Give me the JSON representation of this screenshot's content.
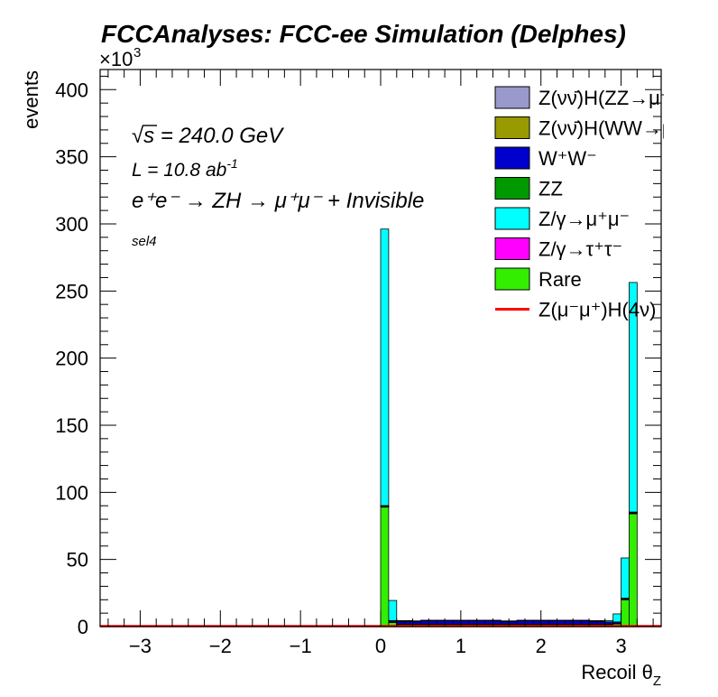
{
  "chart_data": {
    "type": "bar",
    "title": "FCCAnalyses: FCC-ee Simulation (Delphes)",
    "xlabel": "Recoil θ",
    "xlabel_sub": "Z",
    "ylabel": "events",
    "y_exponent_label": "×10",
    "y_exponent_power": "3",
    "xlim": [
      -3.5,
      3.5
    ],
    "ylim": [
      0,
      415
    ],
    "x_ticks": [
      -3,
      -2,
      -1,
      0,
      1,
      2,
      3
    ],
    "x_tick_labels": [
      "−3",
      "−2",
      "−1",
      "0",
      "1",
      "2",
      "3"
    ],
    "y_ticks": [
      0,
      50,
      100,
      150,
      200,
      250,
      300,
      350,
      400
    ],
    "y_tick_labels": [
      "0",
      "50",
      "100",
      "150",
      "200",
      "250",
      "300",
      "350",
      "400"
    ],
    "y_unit_multiplier": 1000,
    "grid": false,
    "legend_position": "top-right",
    "bin_edges": [
      0.0,
      0.1,
      0.2,
      0.3,
      0.4,
      0.5,
      0.6,
      0.7,
      0.8,
      0.9,
      1.0,
      1.1,
      1.2,
      1.3,
      1.4,
      1.5,
      1.6,
      1.7,
      1.8,
      1.9,
      2.0,
      2.1,
      2.2,
      2.3,
      2.4,
      2.5,
      2.6,
      2.7,
      2.8,
      2.9,
      3.0,
      3.1,
      3.2
    ],
    "stack_order": [
      "Rare",
      "ZZ",
      "W+W-",
      "Z(νν)H(WW)",
      "Z(νν)H(ZZ)",
      "Z/γ→τ+τ-",
      "Z/γ→μ+μ-"
    ],
    "series": [
      {
        "name": "Rare",
        "color": "#33ee00",
        "values": [
          89,
          3,
          1.5,
          1.5,
          1.5,
          1.5,
          1.5,
          1.5,
          1.5,
          1.5,
          1.5,
          1.5,
          1.5,
          1.5,
          1.5,
          1.5,
          1.5,
          1.5,
          1.5,
          1.5,
          1.5,
          1.5,
          1.5,
          1.5,
          1.5,
          1.5,
          1.5,
          1.5,
          1.5,
          2,
          20,
          84
        ]
      },
      {
        "name": "ZZ",
        "color": "#009900",
        "values": [
          0.3,
          0.3,
          0.3,
          0.3,
          0.3,
          0.3,
          0.3,
          0.3,
          0.3,
          0.3,
          0.3,
          0.3,
          0.3,
          0.3,
          0.3,
          0.3,
          0.3,
          0.3,
          0.3,
          0.3,
          0.3,
          0.3,
          0.3,
          0.3,
          0.3,
          0.3,
          0.3,
          0.3,
          0.3,
          0.3,
          0.5,
          0.5
        ]
      },
      {
        "name": "W+W-",
        "color": "#0000cc",
        "values": [
          0.5,
          1,
          2,
          2,
          2,
          2.5,
          2.5,
          2.5,
          2.5,
          2.5,
          2.5,
          2.5,
          2.5,
          2.5,
          2.5,
          2,
          2,
          2.5,
          2.5,
          2.5,
          2.5,
          2.5,
          2.5,
          2.5,
          2.5,
          2.5,
          2,
          2,
          1.5,
          1,
          0.5,
          0.5
        ]
      },
      {
        "name": "Z(νν)H(WW)",
        "color": "#999900",
        "values": [
          0.1,
          0.1,
          0.1,
          0.1,
          0.1,
          0.1,
          0.1,
          0.1,
          0.1,
          0.1,
          0.1,
          0.1,
          0.1,
          0.1,
          0.1,
          0.1,
          0.1,
          0.1,
          0.1,
          0.1,
          0.1,
          0.1,
          0.1,
          0.1,
          0.1,
          0.1,
          0.1,
          0.1,
          0.1,
          0.1,
          0.1,
          0.1
        ]
      },
      {
        "name": "Z(νν)H(ZZ)",
        "color": "#9999cc",
        "values": [
          0.05,
          0.05,
          0.05,
          0.05,
          0.05,
          0.05,
          0.05,
          0.05,
          0.05,
          0.05,
          0.05,
          0.05,
          0.05,
          0.05,
          0.05,
          0.05,
          0.05,
          0.05,
          0.05,
          0.05,
          0.05,
          0.05,
          0.05,
          0.05,
          0.05,
          0.05,
          0.05,
          0.05,
          0.05,
          0.05,
          0.05,
          0.05
        ]
      },
      {
        "name": "Z/γ→τ+τ-",
        "color": "#ff00ff",
        "values": [
          0.2,
          0,
          0,
          0,
          0,
          0,
          0,
          0,
          0,
          0,
          0,
          0,
          0,
          0,
          0,
          0,
          0,
          0,
          0,
          0,
          0,
          0,
          0,
          0,
          0,
          0,
          0,
          0,
          0,
          0,
          0,
          0.2
        ]
      },
      {
        "name": "Z/γ→μ+μ-",
        "color": "#00ffff",
        "values": [
          206,
          15,
          0.5,
          0.5,
          0.3,
          0.3,
          0.3,
          0.3,
          0.3,
          0.3,
          0.3,
          0.3,
          0.3,
          0.3,
          0.3,
          0.3,
          0.3,
          0.3,
          0.3,
          0.3,
          0.3,
          0.3,
          0.3,
          0.3,
          0.3,
          0.3,
          0.5,
          0.5,
          1,
          6,
          30,
          171
        ]
      }
    ],
    "signal_line": {
      "name": "Z(μ-μ+)H(4ν)",
      "color": "#ff0000",
      "value": 0.3
    }
  },
  "annotations": {
    "sqrt_s_symbol": "√",
    "sqrt_s_var": "s",
    "sqrt_s_text": " = 240.0 GeV",
    "lumi_text": "L = 10.8 ab",
    "lumi_exp": "-1",
    "process_text": "e⁺e⁻ → ZH → μ⁺μ⁻ + Invisible",
    "selection_text": "sel4"
  },
  "legend": [
    {
      "label": "Z(νν̄)H(ZZ→μ⁺μ⁻ν⁺",
      "color": "#9999cc",
      "kind": "box"
    },
    {
      "label": "Z(νν̄)H(WW→μ⁺νμ",
      "color": "#999900",
      "kind": "box"
    },
    {
      "label": "W⁺W⁻",
      "color": "#0000cc",
      "kind": "box"
    },
    {
      "label": "ZZ",
      "color": "#009900",
      "kind": "box"
    },
    {
      "label": "Z/γ→μ⁺μ⁻",
      "color": "#00ffff",
      "kind": "box"
    },
    {
      "label": "Z/γ→τ⁺τ⁻",
      "color": "#ff00ff",
      "kind": "box"
    },
    {
      "label": "Rare",
      "color": "#33ee00",
      "kind": "box"
    },
    {
      "label": "Z(μ⁻μ⁺)H(4ν)",
      "color": "#ff0000",
      "kind": "line"
    }
  ]
}
